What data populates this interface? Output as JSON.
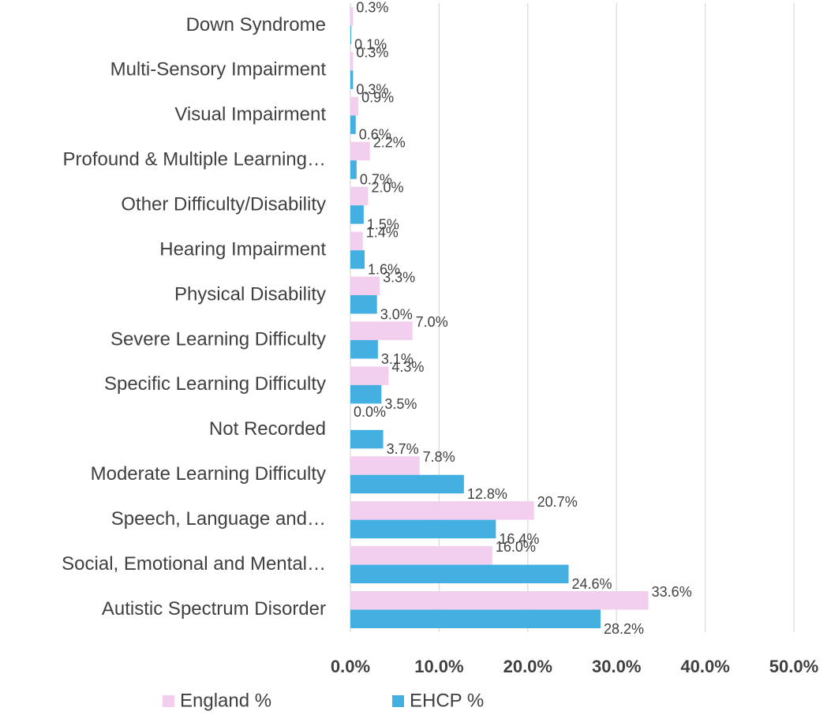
{
  "chart_data": {
    "type": "barh",
    "categories": [
      "Down Syndrome",
      "Multi-Sensory Impairment",
      "Visual Impairment",
      "Profound & Multiple Learning…",
      "Other Difficulty/Disability",
      "Hearing Impairment",
      "Physical Disability",
      "Severe Learning Difficulty",
      "Specific Learning Difficulty",
      "Not Recorded",
      "Moderate Learning Difficulty",
      "Speech, Language and…",
      "Social, Emotional and Mental…",
      "Autistic Spectrum Disorder"
    ],
    "series": [
      {
        "name": "England %",
        "color": "#f2ceef",
        "values": [
          0.3,
          0.3,
          0.9,
          2.2,
          2.0,
          1.4,
          3.3,
          7.0,
          4.3,
          0.0,
          7.8,
          20.7,
          16.0,
          33.6
        ],
        "value_labels": [
          "0.3%",
          "0.3%",
          "0.9%",
          "2.2%",
          "2.0%",
          "1.4%",
          "3.3%",
          "7.0%",
          "4.3%",
          "0.0%",
          "7.8%",
          "20.7%",
          "16.0%",
          "33.6%"
        ]
      },
      {
        "name": "EHCP %",
        "color": "#44b0e1",
        "values": [
          0.1,
          0.3,
          0.6,
          0.7,
          1.5,
          1.6,
          3.0,
          3.1,
          3.5,
          3.7,
          12.8,
          16.4,
          24.6,
          28.2
        ],
        "value_labels": [
          "0.1%",
          "0.3%",
          "0.6%",
          "0.7%",
          "1.5%",
          "1.6%",
          "3.0%",
          "3.1%",
          "3.5%",
          "3.7%",
          "12.8%",
          "16.4%",
          "24.6%",
          "28.2%"
        ]
      }
    ],
    "xlim": [
      0,
      50
    ],
    "xticks": [
      {
        "value": 0,
        "label": "0.0%"
      },
      {
        "value": 10,
        "label": "10.0%"
      },
      {
        "value": 20,
        "label": "20.0%"
      },
      {
        "value": 30,
        "label": "30.0%"
      },
      {
        "value": 40,
        "label": "40.0%"
      },
      {
        "value": 50,
        "label": "50.0%"
      }
    ],
    "grid": true,
    "legend": "bottom"
  }
}
